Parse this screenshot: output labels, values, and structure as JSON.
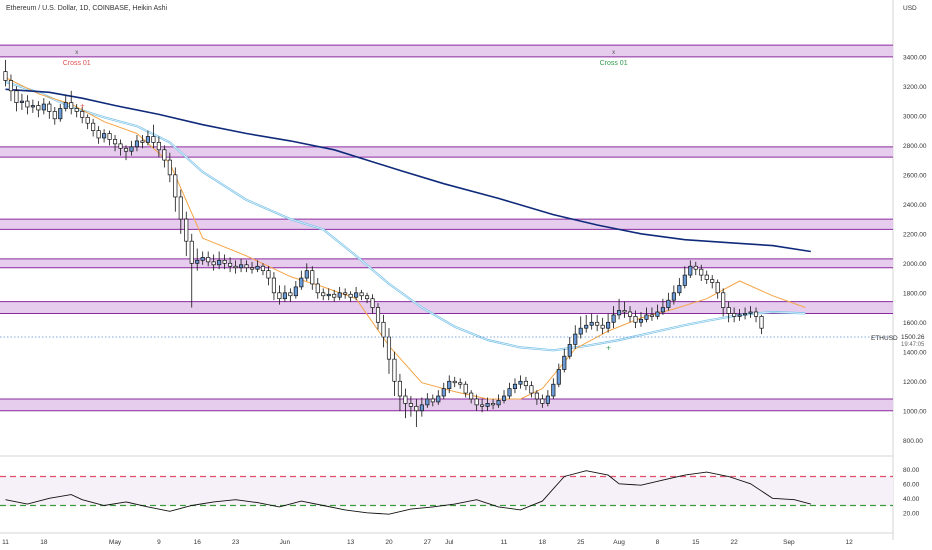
{
  "title": "Ethereum / U.S. Dollar, 1D, COINBASE, Heikin Ashi",
  "currency": "USD",
  "symbol_badge": "ETHUSD",
  "last_price_label": "1500.26",
  "countdown_label": "19:47:05",
  "colors": {
    "zone_fill": "#e6cdee",
    "zone_border": "#8a2a9e",
    "bull_candle": "#6a9bd6",
    "bear_candle": "#ffffff",
    "candle_border": "#111111",
    "ema_fast": "#f4a547",
    "ema_mid": "#7fc4e8",
    "sma_slow": "#0f2a7a",
    "rsi_line": "#111111",
    "rsi_upper": "#e0506a",
    "rsi_lower": "#3a9a3a",
    "rsi_band": "#f6f1f8",
    "cross_red": "#e05050",
    "cross_green": "#2f9a4a",
    "price_line": "#5a8fd6"
  },
  "annotations": [
    {
      "mark": "x",
      "label": "Cross 01",
      "color": "red",
      "day": 13
    },
    {
      "mark": "x",
      "label": "Cross 01",
      "color": "green",
      "day": 111
    }
  ],
  "chart_data": [
    {
      "type": "candlestick",
      "subtype": "heikin-ashi",
      "x_unit": "day index (0 = Apr 11)",
      "x_ticks": [
        {
          "day": 0,
          "label": "11"
        },
        {
          "day": 7,
          "label": "18"
        },
        {
          "day": 20,
          "label": "May"
        },
        {
          "day": 28,
          "label": "9"
        },
        {
          "day": 35,
          "label": "16"
        },
        {
          "day": 42,
          "label": "23"
        },
        {
          "day": 51,
          "label": "Jun"
        },
        {
          "day": 63,
          "label": "13"
        },
        {
          "day": 70,
          "label": "20"
        },
        {
          "day": 77,
          "label": "27"
        },
        {
          "day": 81,
          "label": "Jul"
        },
        {
          "day": 91,
          "label": "11"
        },
        {
          "day": 98,
          "label": "18"
        },
        {
          "day": 105,
          "label": "25"
        },
        {
          "day": 112,
          "label": "Aug"
        },
        {
          "day": 119,
          "label": "8"
        },
        {
          "day": 126,
          "label": "15"
        },
        {
          "day": 133,
          "label": "22"
        },
        {
          "day": 143,
          "label": "Sep"
        },
        {
          "day": 154,
          "label": "12"
        }
      ],
      "y_ticks": [
        800,
        1000,
        1200,
        1400,
        1600,
        1800,
        2000,
        2200,
        2400,
        2600,
        2800,
        3000,
        3200,
        3400
      ],
      "ylim": [
        700,
        3650
      ],
      "xlim": [
        -1,
        162
      ],
      "zones": [
        [
          3400,
          3480
        ],
        [
          2720,
          2790
        ],
        [
          2230,
          2300
        ],
        [
          1970,
          2030
        ],
        [
          1660,
          1740
        ],
        [
          1000,
          1080
        ]
      ],
      "candles": [
        [
          3300,
          3240,
          3380,
          3200
        ],
        [
          3240,
          3170,
          3280,
          3100
        ],
        [
          3170,
          3090,
          3200,
          3030
        ],
        [
          3090,
          3100,
          3150,
          3040
        ],
        [
          3100,
          3060,
          3140,
          3010
        ],
        [
          3060,
          3070,
          3110,
          3020
        ],
        [
          3070,
          3040,
          3100,
          2990
        ],
        [
          3040,
          3080,
          3120,
          3010
        ],
        [
          3080,
          3030,
          3100,
          2980
        ],
        [
          3030,
          2980,
          3060,
          2940
        ],
        [
          2980,
          3050,
          3080,
          2960
        ],
        [
          3050,
          3090,
          3140,
          3030
        ],
        [
          3090,
          3050,
          3170,
          3010
        ],
        [
          3050,
          3030,
          3080,
          2990
        ],
        [
          3030,
          2990,
          3060,
          2950
        ],
        [
          2990,
          2950,
          3010,
          2910
        ],
        [
          2950,
          2900,
          2980,
          2860
        ],
        [
          2900,
          2850,
          2930,
          2810
        ],
        [
          2850,
          2880,
          2910,
          2820
        ],
        [
          2880,
          2840,
          2900,
          2800
        ],
        [
          2840,
          2810,
          2870,
          2760
        ],
        [
          2810,
          2780,
          2840,
          2730
        ],
        [
          2780,
          2760,
          2800,
          2700
        ],
        [
          2760,
          2790,
          2830,
          2730
        ],
        [
          2790,
          2830,
          2870,
          2760
        ],
        [
          2830,
          2820,
          2870,
          2780
        ],
        [
          2820,
          2860,
          2900,
          2800
        ],
        [
          2860,
          2820,
          2940,
          2780
        ],
        [
          2820,
          2770,
          2860,
          2720
        ],
        [
          2770,
          2700,
          2800,
          2650
        ],
        [
          2700,
          2600,
          2750,
          2550
        ],
        [
          2600,
          2450,
          2650,
          2350
        ],
        [
          2450,
          2300,
          2500,
          2200
        ],
        [
          2300,
          2150,
          2350,
          2050
        ],
        [
          2150,
          2000,
          2200,
          1700
        ],
        [
          2000,
          2020,
          2100,
          1950
        ],
        [
          2020,
          2040,
          2080,
          1990
        ],
        [
          2040,
          2010,
          2080,
          1980
        ],
        [
          2010,
          1990,
          2060,
          1950
        ],
        [
          1990,
          2020,
          2080,
          1960
        ],
        [
          2020,
          2000,
          2060,
          1960
        ],
        [
          2000,
          1980,
          2040,
          1940
        ],
        [
          1980,
          1970,
          2020,
          1930
        ],
        [
          1970,
          1990,
          2030,
          1940
        ],
        [
          1990,
          1970,
          2020,
          1940
        ],
        [
          1970,
          1960,
          2010,
          1930
        ],
        [
          1960,
          1980,
          2020,
          1940
        ],
        [
          1980,
          1950,
          2000,
          1920
        ],
        [
          1950,
          1900,
          1980,
          1850
        ],
        [
          1900,
          1800,
          1940,
          1750
        ],
        [
          1800,
          1760,
          1850,
          1720
        ],
        [
          1760,
          1800,
          1850,
          1740
        ],
        [
          1800,
          1780,
          1830,
          1740
        ],
        [
          1780,
          1840,
          1880,
          1760
        ],
        [
          1840,
          1900,
          1950,
          1820
        ],
        [
          1900,
          1950,
          2000,
          1880
        ],
        [
          1950,
          1860,
          1980,
          1820
        ],
        [
          1860,
          1800,
          1900,
          1760
        ],
        [
          1800,
          1780,
          1830,
          1750
        ],
        [
          1780,
          1790,
          1830,
          1750
        ],
        [
          1790,
          1770,
          1820,
          1740
        ],
        [
          1770,
          1800,
          1840,
          1750
        ],
        [
          1800,
          1790,
          1830,
          1760
        ],
        [
          1790,
          1770,
          1810,
          1740
        ],
        [
          1770,
          1800,
          1840,
          1750
        ],
        [
          1800,
          1780,
          1820,
          1750
        ],
        [
          1780,
          1760,
          1800,
          1730
        ],
        [
          1760,
          1700,
          1790,
          1660
        ],
        [
          1700,
          1600,
          1730,
          1550
        ],
        [
          1600,
          1500,
          1650,
          1430
        ],
        [
          1500,
          1350,
          1560,
          1250
        ],
        [
          1350,
          1200,
          1400,
          1100
        ],
        [
          1200,
          1100,
          1250,
          1000
        ],
        [
          1100,
          1050,
          1150,
          950
        ],
        [
          1050,
          1030,
          1100,
          960
        ],
        [
          1030,
          1000,
          1080,
          890
        ],
        [
          1000,
          1040,
          1090,
          960
        ],
        [
          1040,
          1080,
          1120,
          1020
        ],
        [
          1080,
          1060,
          1110,
          1030
        ],
        [
          1060,
          1100,
          1140,
          1040
        ],
        [
          1100,
          1150,
          1190,
          1080
        ],
        [
          1150,
          1200,
          1240,
          1120
        ],
        [
          1200,
          1190,
          1230,
          1160
        ],
        [
          1190,
          1180,
          1220,
          1150
        ],
        [
          1180,
          1120,
          1200,
          1090
        ],
        [
          1120,
          1080,
          1140,
          1050
        ],
        [
          1080,
          1040,
          1110,
          1000
        ],
        [
          1040,
          1030,
          1080,
          990
        ],
        [
          1030,
          1050,
          1090,
          1000
        ],
        [
          1050,
          1040,
          1080,
          1010
        ],
        [
          1040,
          1070,
          1110,
          1020
        ],
        [
          1070,
          1100,
          1140,
          1050
        ],
        [
          1100,
          1150,
          1190,
          1080
        ],
        [
          1150,
          1180,
          1220,
          1120
        ],
        [
          1180,
          1200,
          1240,
          1150
        ],
        [
          1200,
          1170,
          1230,
          1140
        ],
        [
          1170,
          1120,
          1200,
          1090
        ],
        [
          1120,
          1080,
          1140,
          1040
        ],
        [
          1080,
          1050,
          1110,
          1020
        ],
        [
          1050,
          1100,
          1140,
          1030
        ],
        [
          1100,
          1180,
          1220,
          1080
        ],
        [
          1180,
          1280,
          1320,
          1160
        ],
        [
          1280,
          1370,
          1420,
          1260
        ],
        [
          1370,
          1450,
          1500,
          1350
        ],
        [
          1450,
          1520,
          1580,
          1420
        ],
        [
          1520,
          1560,
          1640,
          1490
        ],
        [
          1560,
          1580,
          1650,
          1530
        ],
        [
          1580,
          1600,
          1660,
          1550
        ],
        [
          1600,
          1580,
          1650,
          1540
        ],
        [
          1580,
          1560,
          1630,
          1520
        ],
        [
          1560,
          1600,
          1660,
          1530
        ],
        [
          1600,
          1650,
          1710,
          1560
        ],
        [
          1650,
          1680,
          1760,
          1620
        ],
        [
          1680,
          1670,
          1740,
          1630
        ],
        [
          1670,
          1640,
          1710,
          1600
        ],
        [
          1640,
          1600,
          1680,
          1560
        ],
        [
          1600,
          1620,
          1670,
          1570
        ],
        [
          1620,
          1650,
          1700,
          1600
        ],
        [
          1650,
          1640,
          1700,
          1610
        ],
        [
          1640,
          1670,
          1720,
          1620
        ],
        [
          1670,
          1700,
          1760,
          1650
        ],
        [
          1700,
          1750,
          1800,
          1680
        ],
        [
          1750,
          1800,
          1850,
          1720
        ],
        [
          1800,
          1850,
          1900,
          1780
        ],
        [
          1850,
          1920,
          1980,
          1830
        ],
        [
          1920,
          1980,
          2020,
          1900
        ],
        [
          1980,
          1960,
          2010,
          1920
        ],
        [
          1960,
          1920,
          1990,
          1880
        ],
        [
          1920,
          1890,
          1950,
          1860
        ],
        [
          1890,
          1870,
          1920,
          1830
        ],
        [
          1870,
          1800,
          1890,
          1760
        ],
        [
          1800,
          1700,
          1830,
          1640
        ],
        [
          1700,
          1660,
          1740,
          1600
        ],
        [
          1660,
          1640,
          1700,
          1600
        ],
        [
          1640,
          1650,
          1690,
          1610
        ],
        [
          1650,
          1660,
          1700,
          1620
        ],
        [
          1660,
          1670,
          1710,
          1630
        ],
        [
          1670,
          1640,
          1700,
          1600
        ],
        [
          1640,
          1560,
          1650,
          1520
        ]
      ],
      "sma_slow": [
        [
          0,
          3180
        ],
        [
          8,
          3160
        ],
        [
          14,
          3120
        ],
        [
          20,
          3070
        ],
        [
          28,
          3010
        ],
        [
          36,
          2940
        ],
        [
          44,
          2880
        ],
        [
          52,
          2830
        ],
        [
          60,
          2770
        ],
        [
          66,
          2700
        ],
        [
          72,
          2630
        ],
        [
          80,
          2540
        ],
        [
          90,
          2440
        ],
        [
          100,
          2330
        ],
        [
          108,
          2260
        ],
        [
          116,
          2200
        ],
        [
          124,
          2160
        ],
        [
          132,
          2140
        ],
        [
          140,
          2120
        ],
        [
          147,
          2080
        ]
      ],
      "ema_mid": [
        [
          0,
          3230
        ],
        [
          6,
          3160
        ],
        [
          12,
          3060
        ],
        [
          18,
          2990
        ],
        [
          24,
          2930
        ],
        [
          30,
          2820
        ],
        [
          36,
          2620
        ],
        [
          44,
          2430
        ],
        [
          52,
          2300
        ],
        [
          58,
          2230
        ],
        [
          64,
          2050
        ],
        [
          70,
          1860
        ],
        [
          76,
          1700
        ],
        [
          82,
          1570
        ],
        [
          88,
          1480
        ],
        [
          94,
          1430
        ],
        [
          100,
          1410
        ],
        [
          106,
          1440
        ],
        [
          112,
          1480
        ],
        [
          118,
          1530
        ],
        [
          124,
          1580
        ],
        [
          128,
          1610
        ],
        [
          134,
          1650
        ],
        [
          140,
          1670
        ],
        [
          146,
          1660
        ]
      ],
      "ema_fast": [
        [
          0,
          3260
        ],
        [
          6,
          3150
        ],
        [
          12,
          3080
        ],
        [
          18,
          2960
        ],
        [
          24,
          2880
        ],
        [
          30,
          2680
        ],
        [
          36,
          2170
        ],
        [
          44,
          2050
        ],
        [
          52,
          1910
        ],
        [
          58,
          1840
        ],
        [
          64,
          1760
        ],
        [
          70,
          1440
        ],
        [
          76,
          1190
        ],
        [
          82,
          1130
        ],
        [
          88,
          1080
        ],
        [
          94,
          1080
        ],
        [
          98,
          1150
        ],
        [
          104,
          1420
        ],
        [
          110,
          1540
        ],
        [
          116,
          1630
        ],
        [
          122,
          1690
        ],
        [
          128,
          1760
        ],
        [
          134,
          1880
        ],
        [
          140,
          1780
        ],
        [
          146,
          1700
        ]
      ]
    },
    {
      "type": "line",
      "name": "RSI",
      "x_unit": "day index (0 = Apr 11)",
      "ylim": [
        10,
        90
      ],
      "y_ticks": [
        20,
        40,
        60,
        80
      ],
      "levels": [
        70,
        30
      ],
      "x": [
        0,
        4,
        8,
        12,
        14,
        18,
        22,
        26,
        30,
        34,
        38,
        42,
        46,
        50,
        54,
        58,
        62,
        66,
        70,
        74,
        78,
        82,
        86,
        90,
        94,
        98,
        102,
        106,
        110,
        112,
        116,
        120,
        124,
        128,
        132,
        136,
        140,
        144,
        147
      ],
      "values": [
        38,
        32,
        40,
        45,
        38,
        30,
        35,
        28,
        22,
        30,
        35,
        38,
        34,
        28,
        36,
        30,
        24,
        20,
        18,
        25,
        28,
        32,
        38,
        28,
        24,
        36,
        70,
        78,
        72,
        60,
        58,
        65,
        72,
        76,
        70,
        60,
        40,
        38,
        32
      ]
    }
  ]
}
